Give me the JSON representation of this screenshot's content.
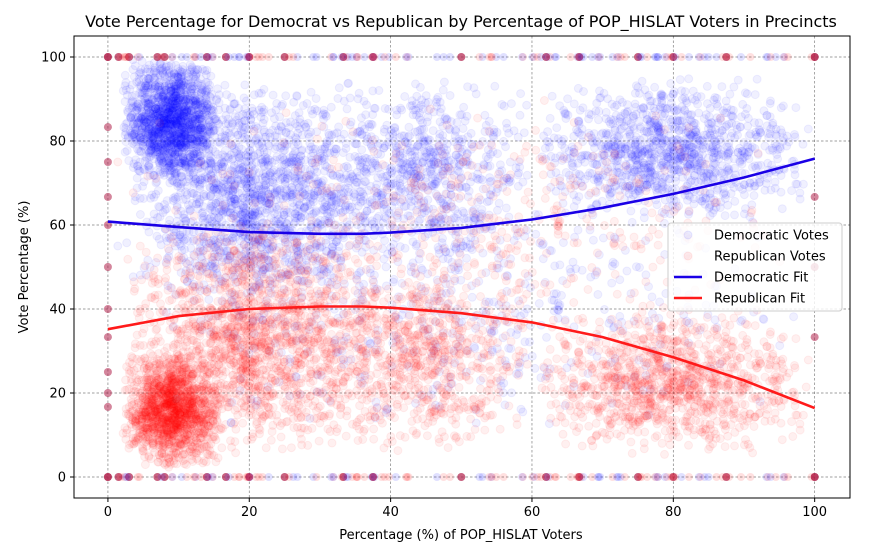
{
  "chart_data": {
    "type": "scatter",
    "title": "Vote Percentage for Democrat vs Republican by Percentage of POP_HISLAT Voters in Precincts",
    "xlabel": "Percentage (%) of POP_HISLAT Voters",
    "ylabel": "Vote Percentage (%)",
    "xlim": [
      -4.8,
      105
    ],
    "ylim": [
      -5,
      105
    ],
    "xticks": [
      0,
      20,
      40,
      60,
      80,
      100
    ],
    "yticks": [
      0,
      20,
      40,
      60,
      80,
      100
    ],
    "xtick_labels": [
      "0",
      "20",
      "40",
      "60",
      "80",
      "100"
    ],
    "ytick_labels": [
      "0",
      "20",
      "40",
      "60",
      "80",
      "100"
    ],
    "grid": true,
    "legend_placement": "center-right",
    "series": [
      {
        "name": "Democratic Votes",
        "kind": "scatter",
        "color": "#0000ff",
        "alpha": 0.06,
        "clusters": [
          {
            "x": [
              2,
              16
            ],
            "y": [
              70,
              100
            ],
            "n": 1400
          },
          {
            "x": [
              2,
              40
            ],
            "y": [
              40,
              95
            ],
            "n": 1600
          },
          {
            "x": [
              30,
              60
            ],
            "y": [
              50,
              95
            ],
            "n": 700
          },
          {
            "x": [
              60,
              100
            ],
            "y": [
              60,
              95
            ],
            "n": 1100
          },
          {
            "x": [
              0,
              100
            ],
            "y": [
              10,
              70
            ],
            "n": 500
          }
        ]
      },
      {
        "name": "Republican Votes",
        "kind": "scatter",
        "color": "#ff0000",
        "alpha": 0.06,
        "clusters": [
          {
            "x": [
              2,
              16
            ],
            "y": [
              2,
              30
            ],
            "n": 1400
          },
          {
            "x": [
              2,
              40
            ],
            "y": [
              5,
              60
            ],
            "n": 1600
          },
          {
            "x": [
              30,
              60
            ],
            "y": [
              5,
              50
            ],
            "n": 700
          },
          {
            "x": [
              60,
              100
            ],
            "y": [
              5,
              40
            ],
            "n": 1100
          },
          {
            "x": [
              0,
              100
            ],
            "y": [
              30,
              90
            ],
            "n": 500
          }
        ]
      },
      {
        "name": "Democratic Fit",
        "kind": "line",
        "color": "#1a00e6",
        "x": [
          0,
          10,
          20,
          30,
          36,
          40,
          50,
          60,
          70,
          80,
          90,
          100
        ],
        "y": [
          60.8,
          59.5,
          58.3,
          57.9,
          57.9,
          58.2,
          59.3,
          61.3,
          64.1,
          67.4,
          71.3,
          75.8
        ]
      },
      {
        "name": "Republican Fit",
        "kind": "line",
        "color": "#ff1a1a",
        "x": [
          0,
          10,
          20,
          30,
          36,
          40,
          50,
          60,
          70,
          80,
          90,
          100
        ],
        "y": [
          35.2,
          38.3,
          40.0,
          40.6,
          40.6,
          40.3,
          39.0,
          36.8,
          33.3,
          28.5,
          23.0,
          16.4
        ]
      }
    ],
    "boundary_points": {
      "x_at_edges": [
        0,
        1.5,
        3,
        7,
        8,
        14,
        16.7,
        20,
        25,
        33.3,
        37.5,
        50,
        62,
        66.7,
        75,
        80,
        87.5,
        100
      ],
      "y_at_left": [
        0,
        16.7,
        20,
        25,
        33.3,
        40,
        50,
        60,
        66.7,
        75,
        83.3,
        100
      ],
      "y_at_right": [
        0,
        33.3,
        50,
        66.7,
        100
      ]
    },
    "legend": [
      {
        "label": "Democratic Votes",
        "marker": "circle",
        "color": "#0000ff"
      },
      {
        "label": "Republican Votes",
        "marker": "circle",
        "color": "#ff0000"
      },
      {
        "label": "Democratic Fit",
        "marker": "line",
        "color": "#1a00e6"
      },
      {
        "label": "Republican Fit",
        "marker": "line",
        "color": "#ff1a1a"
      }
    ]
  }
}
